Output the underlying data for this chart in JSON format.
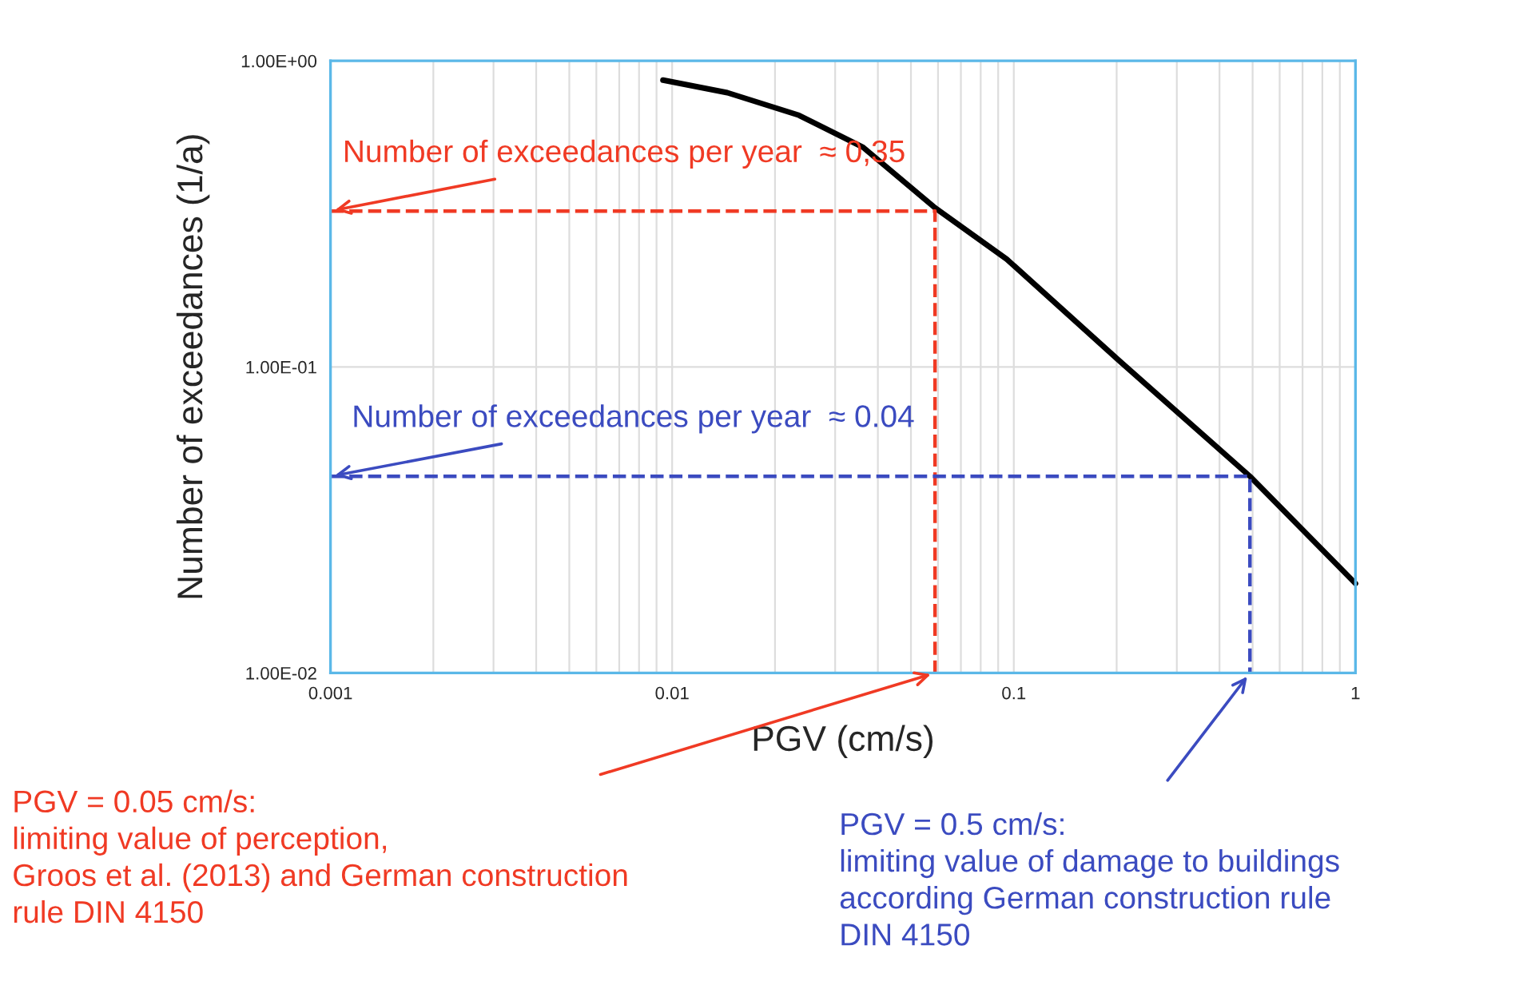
{
  "chart_data": {
    "type": "line",
    "xlabel": "PGV (cm/s)",
    "ylabel": "Number of exceedances (1/a)",
    "log": "xy",
    "grid": true,
    "legend": false,
    "marker": "none",
    "xlim": [
      0.001,
      1
    ],
    "xticks": [
      0.001,
      0.01,
      0.1,
      1
    ],
    "ylim": [
      0.01,
      1
    ],
    "yticks": [
      {
        "value": 0.01,
        "label": "1.00E-02"
      },
      {
        "value": 0.1,
        "label": "1.00E-01"
      },
      {
        "value": 1,
        "label": "1.00E+00"
      }
    ],
    "series": [
      {
        "color": "#000000",
        "line_style": "solid",
        "x": [
          0.0094,
          0.0145,
          0.0235,
          0.0362,
          0.0588,
          0.0953,
          0.203,
          0.491,
          1
        ],
        "values": [
          0.865,
          0.787,
          0.664,
          0.522,
          0.331,
          0.225,
          0.105,
          0.0439,
          0.0196
        ]
      },
      {
        "color": "#f03a24",
        "line_style": "dashed",
        "x": [
          0.001,
          0.0588,
          0.0588
        ],
        "values": [
          0.323,
          0.323,
          0.01
        ]
      },
      {
        "color": "#3b4bc0",
        "line_style": "dashed",
        "x": [
          0.001,
          0.491,
          0.491
        ],
        "values": [
          0.0439,
          0.0439,
          0.01
        ]
      }
    ],
    "annotations": [
      {
        "text": "Number of exceedances per year  ≈ 0,35",
        "x": 0.001,
        "y": 0.323
      },
      {
        "text": "Number of exceedances per year  ≈ 0.04",
        "x": 0.001,
        "y": 0.0439
      },
      {
        "text": "PGV = 0.05 cm/s:\nlimiting value of perception,\nGroos et al. (2013) and German construction\nrule DIN 4150",
        "x": 0.0588,
        "y": 0.01
      },
      {
        "text": "PGV = 0.5 cm/s:\nlimiting value of damage to buildings\naccording German construction rule\nDIN 4150",
        "x": 0.491,
        "y": 0.01
      }
    ]
  }
}
